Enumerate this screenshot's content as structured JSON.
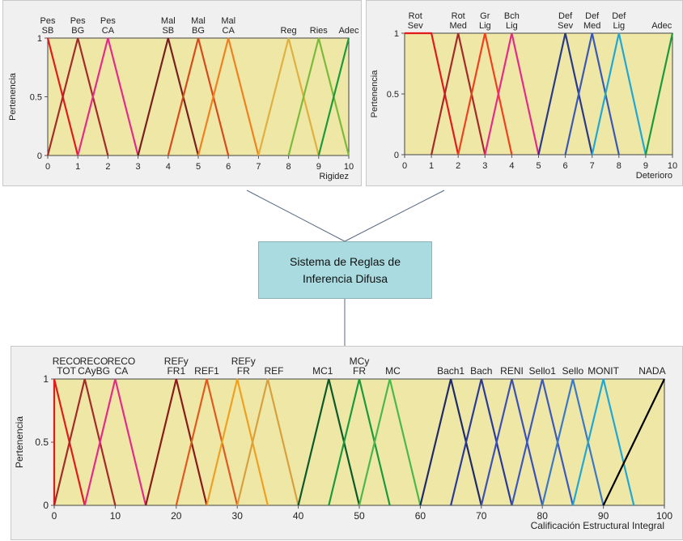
{
  "colors": {
    "plot_bg": "#eee7a6",
    "axis": "#555555",
    "connector": "#5a6a82"
  },
  "rule_box": {
    "line1": "Sistema de Reglas de",
    "line2": "Inferencia Difusa"
  },
  "chart_data": [
    {
      "type": "line",
      "ylabel": "Pertenencia",
      "xlabel": "Rigidez",
      "xlim": [
        0,
        10
      ],
      "ylim": [
        0,
        1
      ],
      "x_ticks": [
        0,
        1,
        2,
        3,
        4,
        5,
        6,
        7,
        8,
        9,
        10
      ],
      "y_ticks": [
        "0",
        "0.5",
        "1"
      ],
      "series": [
        {
          "line1": "Pes",
          "line2": "SB",
          "label_x": 0,
          "points": [
            [
              0,
              1
            ],
            [
              1,
              0
            ]
          ],
          "color": "#e31a1c"
        },
        {
          "line1": "Pes",
          "line2": "BG",
          "label_x": 1,
          "points": [
            [
              0,
              0
            ],
            [
              1,
              1
            ],
            [
              2,
              0
            ]
          ],
          "color": "#a52a2a"
        },
        {
          "line1": "Pes",
          "line2": "CA",
          "label_x": 2,
          "points": [
            [
              1,
              0
            ],
            [
              2,
              1
            ],
            [
              3,
              0
            ]
          ],
          "color": "#e7298a"
        },
        {
          "line1": "Mal",
          "line2": "SB",
          "label_x": 4,
          "points": [
            [
              3,
              0
            ],
            [
              4,
              1
            ],
            [
              5,
              0
            ]
          ],
          "color": "#7a1f1f"
        },
        {
          "line1": "Mal",
          "line2": "BG",
          "label_x": 5,
          "points": [
            [
              4,
              0
            ],
            [
              5,
              1
            ],
            [
              6,
              0
            ]
          ],
          "color": "#d84a1b"
        },
        {
          "line1": "Mal",
          "line2": "CA",
          "label_x": 6,
          "points": [
            [
              5,
              0
            ],
            [
              6,
              1
            ],
            [
              7,
              0
            ]
          ],
          "color": "#f08020"
        },
        {
          "line1": "Reg",
          "line2": "",
          "label_x": 8,
          "points": [
            [
              7,
              0
            ],
            [
              8,
              1
            ],
            [
              9,
              0
            ]
          ],
          "color": "#e0b040"
        },
        {
          "line1": "Ries",
          "line2": "",
          "label_x": 9,
          "points": [
            [
              8,
              0
            ],
            [
              9,
              1
            ],
            [
              10,
              0
            ]
          ],
          "color": "#7cba3c"
        },
        {
          "line1": "Adec",
          "line2": "",
          "label_x": 10,
          "points": [
            [
              9,
              0
            ],
            [
              10,
              1
            ]
          ],
          "color": "#1a9a3a"
        }
      ]
    },
    {
      "type": "line",
      "ylabel": "Pertenencia",
      "xlabel": "Deterioro",
      "xlim": [
        0,
        10
      ],
      "ylim": [
        0,
        1
      ],
      "x_ticks": [
        0,
        1,
        2,
        3,
        4,
        5,
        6,
        7,
        8,
        9,
        10
      ],
      "y_ticks": [
        "0",
        "0.5",
        "1"
      ],
      "series": [
        {
          "line1": "Rot",
          "line2": "Sev",
          "label_x": 0.4,
          "points": [
            [
              0,
              1
            ],
            [
              1,
              1
            ],
            [
              2,
              0
            ]
          ],
          "color": "#e31a1c"
        },
        {
          "line1": "Rot",
          "line2": "Med",
          "label_x": 2,
          "points": [
            [
              1,
              0
            ],
            [
              2,
              1
            ],
            [
              3,
              0
            ]
          ],
          "color": "#a52a2a"
        },
        {
          "line1": "Gr",
          "line2": "Lig",
          "label_x": 3,
          "points": [
            [
              2,
              0
            ],
            [
              3,
              1
            ],
            [
              4,
              0
            ]
          ],
          "color": "#f04020"
        },
        {
          "line1": "Bch",
          "line2": "Lig",
          "label_x": 4,
          "points": [
            [
              3,
              0
            ],
            [
              4,
              1
            ],
            [
              5,
              0
            ]
          ],
          "color": "#e7298a"
        },
        {
          "line1": "Def",
          "line2": "Sev",
          "label_x": 6,
          "points": [
            [
              5,
              0
            ],
            [
              6,
              1
            ],
            [
              7,
              0
            ]
          ],
          "color": "#2a3a8a"
        },
        {
          "line1": "Def",
          "line2": "Med",
          "label_x": 7,
          "points": [
            [
              6,
              0
            ],
            [
              7,
              1
            ],
            [
              8,
              0
            ]
          ],
          "color": "#3a58b8"
        },
        {
          "line1": "Def",
          "line2": "Lig",
          "label_x": 8,
          "points": [
            [
              7,
              0
            ],
            [
              8,
              1
            ],
            [
              9,
              0
            ]
          ],
          "color": "#1ea8d8"
        },
        {
          "line1": "Adec",
          "line2": "",
          "label_x": 9.6,
          "points": [
            [
              9,
              0
            ],
            [
              10,
              1
            ]
          ],
          "color": "#1a9a3a"
        }
      ]
    },
    {
      "type": "line",
      "ylabel": "Pertenencia",
      "xlabel": "Calificación Estructural Integral",
      "xlim": [
        0,
        100
      ],
      "ylim": [
        0,
        1
      ],
      "x_ticks": [
        0,
        10,
        20,
        30,
        40,
        50,
        60,
        70,
        80,
        90,
        100
      ],
      "y_ticks": [
        "0",
        "0.5",
        "1"
      ],
      "series": [
        {
          "line1": "RECO",
          "line2": "TOT",
          "label_x": 2,
          "points": [
            [
              0,
              0
            ],
            [
              0,
              1
            ],
            [
              5,
              0
            ]
          ],
          "color": "#e31a1c"
        },
        {
          "line1": "RECO",
          "line2": "CAyBG",
          "label_x": 6.5,
          "points": [
            [
              0,
              0
            ],
            [
              5,
              1
            ],
            [
              10,
              0
            ]
          ],
          "color": "#a52a2a"
        },
        {
          "line1": "RECO",
          "line2": "CA",
          "label_x": 11,
          "points": [
            [
              5,
              0
            ],
            [
              10,
              1
            ],
            [
              15,
              0
            ]
          ],
          "color": "#e7298a"
        },
        {
          "line1": "REFy",
          "line2": "FR1",
          "label_x": 20,
          "points": [
            [
              15,
              0
            ],
            [
              20,
              1
            ],
            [
              25,
              0
            ]
          ],
          "color": "#8b1a1a"
        },
        {
          "line1": "REF1",
          "line2": "",
          "label_x": 25,
          "points": [
            [
              20,
              0
            ],
            [
              25,
              1
            ],
            [
              30,
              0
            ]
          ],
          "color": "#e05a20"
        },
        {
          "line1": "REFy",
          "line2": "FR",
          "label_x": 31,
          "points": [
            [
              25,
              0
            ],
            [
              30,
              1
            ],
            [
              35,
              0
            ]
          ],
          "color": "#f0a020"
        },
        {
          "line1": "REF",
          "line2": "",
          "label_x": 36,
          "points": [
            [
              30,
              0
            ],
            [
              35,
              1
            ],
            [
              40,
              0
            ]
          ],
          "color": "#d8a040"
        },
        {
          "line1": "MC1",
          "line2": "",
          "label_x": 44,
          "points": [
            [
              40,
              0
            ],
            [
              45,
              1
            ],
            [
              50,
              0
            ]
          ],
          "color": "#0a5a2a"
        },
        {
          "line1": "MCy",
          "line2": "FR",
          "label_x": 50,
          "points": [
            [
              45,
              0
            ],
            [
              50,
              1
            ],
            [
              55,
              0
            ]
          ],
          "color": "#1a9a3a"
        },
        {
          "line1": "MC",
          "line2": "",
          "label_x": 55.5,
          "points": [
            [
              50,
              0
            ],
            [
              55,
              1
            ],
            [
              60,
              0
            ]
          ],
          "color": "#4ab84a"
        },
        {
          "line1": "Bach1",
          "line2": "",
          "label_x": 65,
          "points": [
            [
              60,
              0
            ],
            [
              65,
              1
            ],
            [
              70,
              0
            ]
          ],
          "color": "#1f2a6a"
        },
        {
          "line1": "Bach",
          "line2": "",
          "label_x": 70,
          "points": [
            [
              65,
              0
            ],
            [
              70,
              1
            ],
            [
              75,
              0
            ]
          ],
          "color": "#2a3a9a"
        },
        {
          "line1": "RENI",
          "line2": "",
          "label_x": 75,
          "points": [
            [
              70,
              0
            ],
            [
              75,
              1
            ],
            [
              80,
              0
            ]
          ],
          "color": "#3a50b8"
        },
        {
          "line1": "Sello1",
          "line2": "",
          "label_x": 80,
          "points": [
            [
              75,
              0
            ],
            [
              80,
              1
            ],
            [
              85,
              0
            ]
          ],
          "color": "#3a58c0"
        },
        {
          "line1": "Sello",
          "line2": "",
          "label_x": 85,
          "points": [
            [
              80,
              0
            ],
            [
              85,
              1
            ],
            [
              90,
              0
            ]
          ],
          "color": "#3a78c8"
        },
        {
          "line1": "MONIT",
          "line2": "",
          "label_x": 90,
          "points": [
            [
              85,
              0
            ],
            [
              90,
              1
            ],
            [
              95,
              0
            ]
          ],
          "color": "#1ea8d8"
        },
        {
          "line1": "NADA",
          "line2": "",
          "label_x": 98,
          "points": [
            [
              90,
              0
            ],
            [
              100,
              1
            ]
          ],
          "color": "#000000"
        }
      ]
    }
  ]
}
